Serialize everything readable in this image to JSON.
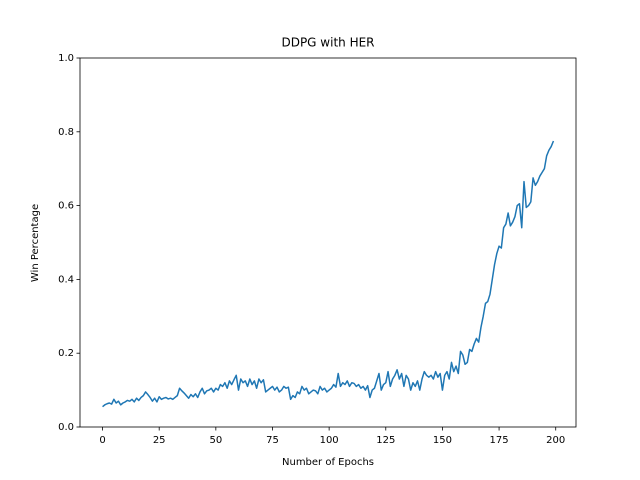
{
  "chart_data": {
    "type": "line",
    "title": "DDPG with HER",
    "xlabel": "Number of Epochs",
    "ylabel": "Win Percentage",
    "x": [
      0,
      1,
      2,
      3,
      4,
      5,
      6,
      7,
      8,
      9,
      10,
      11,
      12,
      13,
      14,
      15,
      16,
      17,
      18,
      19,
      20,
      21,
      22,
      23,
      24,
      25,
      26,
      27,
      28,
      29,
      30,
      31,
      32,
      33,
      34,
      35,
      36,
      37,
      38,
      39,
      40,
      41,
      42,
      43,
      44,
      45,
      46,
      47,
      48,
      49,
      50,
      51,
      52,
      53,
      54,
      55,
      56,
      57,
      58,
      59,
      60,
      61,
      62,
      63,
      64,
      65,
      66,
      67,
      68,
      69,
      70,
      71,
      72,
      73,
      74,
      75,
      76,
      77,
      78,
      79,
      80,
      81,
      82,
      83,
      84,
      85,
      86,
      87,
      88,
      89,
      90,
      91,
      92,
      93,
      94,
      95,
      96,
      97,
      98,
      99,
      100,
      101,
      102,
      103,
      104,
      105,
      106,
      107,
      108,
      109,
      110,
      111,
      112,
      113,
      114,
      115,
      116,
      117,
      118,
      119,
      120,
      121,
      122,
      123,
      124,
      125,
      126,
      127,
      128,
      129,
      130,
      131,
      132,
      133,
      134,
      135,
      136,
      137,
      138,
      139,
      140,
      141,
      142,
      143,
      144,
      145,
      146,
      147,
      148,
      149,
      150,
      151,
      152,
      153,
      154,
      155,
      156,
      157,
      158,
      159,
      160,
      161,
      162,
      163,
      164,
      165,
      166,
      167,
      168,
      169,
      170,
      171,
      172,
      173,
      174,
      175,
      176,
      177,
      178,
      179,
      180,
      181,
      182,
      183,
      184,
      185,
      186,
      187,
      188,
      189,
      190,
      191,
      192,
      193,
      194,
      195,
      196,
      197,
      198,
      199
    ],
    "series": [
      {
        "color": "#1f77b4",
        "values": [
          0.055,
          0.06,
          0.063,
          0.065,
          0.062,
          0.075,
          0.065,
          0.07,
          0.06,
          0.065,
          0.068,
          0.072,
          0.07,
          0.075,
          0.068,
          0.078,
          0.072,
          0.08,
          0.085,
          0.095,
          0.088,
          0.08,
          0.07,
          0.078,
          0.068,
          0.082,
          0.075,
          0.078,
          0.08,
          0.076,
          0.078,
          0.075,
          0.08,
          0.085,
          0.105,
          0.098,
          0.092,
          0.085,
          0.078,
          0.088,
          0.082,
          0.09,
          0.08,
          0.095,
          0.105,
          0.09,
          0.098,
          0.1,
          0.105,
          0.095,
          0.105,
          0.1,
          0.115,
          0.11,
          0.12,
          0.105,
          0.125,
          0.115,
          0.128,
          0.14,
          0.1,
          0.13,
          0.12,
          0.125,
          0.11,
          0.13,
          0.115,
          0.125,
          0.105,
          0.13,
          0.12,
          0.128,
          0.095,
          0.1,
          0.105,
          0.11,
          0.1,
          0.108,
          0.095,
          0.1,
          0.11,
          0.105,
          0.108,
          0.075,
          0.085,
          0.08,
          0.095,
          0.09,
          0.11,
          0.1,
          0.105,
          0.09,
          0.095,
          0.1,
          0.098,
          0.09,
          0.11,
          0.1,
          0.105,
          0.095,
          0.1,
          0.105,
          0.115,
          0.108,
          0.145,
          0.11,
          0.12,
          0.115,
          0.125,
          0.11,
          0.12,
          0.118,
          0.11,
          0.115,
          0.105,
          0.11,
          0.1,
          0.112,
          0.08,
          0.1,
          0.105,
          0.125,
          0.145,
          0.1,
          0.115,
          0.12,
          0.15,
          0.11,
          0.13,
          0.14,
          0.155,
          0.13,
          0.145,
          0.11,
          0.14,
          0.13,
          0.1,
          0.12,
          0.11,
          0.125,
          0.1,
          0.13,
          0.15,
          0.14,
          0.135,
          0.14,
          0.13,
          0.15,
          0.135,
          0.145,
          0.1,
          0.14,
          0.15,
          0.13,
          0.175,
          0.15,
          0.165,
          0.145,
          0.205,
          0.195,
          0.17,
          0.175,
          0.21,
          0.205,
          0.225,
          0.24,
          0.23,
          0.27,
          0.3,
          0.335,
          0.34,
          0.36,
          0.4,
          0.44,
          0.47,
          0.49,
          0.485,
          0.54,
          0.55,
          0.58,
          0.545,
          0.555,
          0.57,
          0.6,
          0.605,
          0.54,
          0.665,
          0.595,
          0.6,
          0.61,
          0.675,
          0.655,
          0.665,
          0.68,
          0.69,
          0.7,
          0.735,
          0.75,
          0.76,
          0.775
        ]
      }
    ],
    "xlim": [
      -9.95,
      208.95
    ],
    "ylim": [
      0,
      1
    ],
    "xticks": [
      0,
      25,
      50,
      75,
      100,
      125,
      150,
      175,
      200
    ],
    "yticks": [
      {
        "value": 0,
        "label": "0.0"
      },
      {
        "value": 0.2,
        "label": "0.2"
      },
      {
        "value": 0.4,
        "label": "0.4"
      },
      {
        "value": 0.6,
        "label": "0.6"
      },
      {
        "value": 0.8,
        "label": "0.8"
      },
      {
        "value": 1,
        "label": "1.0"
      }
    ]
  }
}
